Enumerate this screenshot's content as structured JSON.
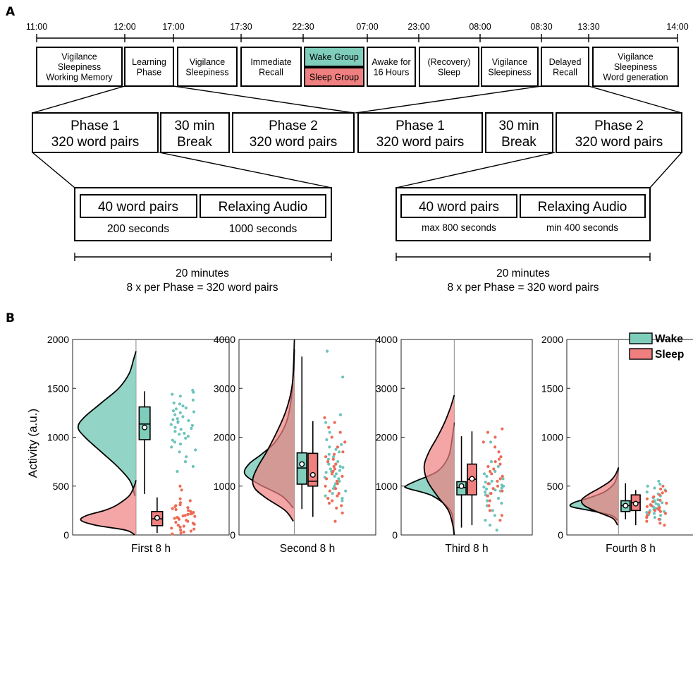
{
  "panel_a": {
    "letter": "A",
    "timeline_ticks": [
      "11:00",
      "12:00",
      "17:00",
      "17:30",
      "22:30",
      "07:00",
      "23:00",
      "08:00",
      "08:30",
      "13:30",
      "14:00"
    ],
    "stages": [
      {
        "lines": [
          "Vigilance",
          "Sleepiness",
          "Working Memory"
        ]
      },
      {
        "lines": [
          "Learning",
          "Phase"
        ]
      },
      {
        "lines": [
          "Vigilance",
          "Sleepiness"
        ]
      },
      {
        "lines": [
          "Immediate",
          "Recall"
        ]
      },
      {
        "lines": [
          "Wake Group"
        ],
        "color": "#7fcdbb"
      },
      {
        "lines": [
          "Sleep Group"
        ],
        "color": "#f08080"
      },
      {
        "lines": [
          "Awake for",
          "16 Hours"
        ]
      },
      {
        "lines": [
          "(Recovery)",
          "Sleep"
        ]
      },
      {
        "lines": [
          "Vigilance",
          "Sleepiness"
        ]
      },
      {
        "lines": [
          "Delayed",
          "Recall"
        ]
      },
      {
        "lines": [
          "Vigilance",
          "Sleepiness",
          "Word generation"
        ]
      }
    ],
    "learning": {
      "phase1": [
        "Phase 1",
        "320 word pairs"
      ],
      "break": [
        "30 min",
        "Break"
      ],
      "phase2": [
        "Phase 2",
        "320 word pairs"
      ],
      "block_pairs": "40 word pairs",
      "block_audio": "Relaxing Audio",
      "pairs_time": "200 seconds",
      "audio_time": "1000 seconds",
      "duration": "20 minutes",
      "per_phase": "8 x per Phase = 320 word pairs"
    },
    "recall": {
      "phase1": [
        "Phase 1",
        "320 word pairs"
      ],
      "break": [
        "30 min",
        "Break"
      ],
      "phase2": [
        "Phase 2",
        "320 word pairs"
      ],
      "block_pairs": "40 word pairs",
      "block_audio": "Relaxing Audio",
      "pairs_time": "max 800 seconds",
      "audio_time": "min 400 seconds",
      "duration": "20 minutes",
      "per_phase": "8 x per Phase = 320 word pairs"
    }
  },
  "chart_data": {
    "type": "raincloud",
    "letter": "B",
    "ylabel": "Activity (a.u.)",
    "legend": {
      "placement": "top-right",
      "entries": [
        {
          "name": "Wake",
          "color": "#7fcdbb"
        },
        {
          "name": "Sleep",
          "color": "#f08080"
        }
      ]
    },
    "colors": {
      "wake": "#7fcdbb",
      "sleep": "#f08080",
      "wake_dots": "#6cc4ba",
      "sleep_dots": "#ee6a55"
    },
    "subplots": [
      {
        "xlabel": "First 8 h",
        "ylim": [
          0,
          2000
        ],
        "yticks": [
          0,
          500,
          1000,
          1500,
          2000
        ],
        "wake": {
          "density": [
            [
              400,
              0.02
            ],
            [
              550,
              0.1
            ],
            [
              700,
              0.32
            ],
            [
              850,
              0.6
            ],
            [
              1000,
              0.88
            ],
            [
              1100,
              1.0
            ],
            [
              1200,
              0.9
            ],
            [
              1350,
              0.6
            ],
            [
              1500,
              0.3
            ],
            [
              1650,
              0.12
            ],
            [
              1800,
              0.04
            ],
            [
              1880,
              0.0
            ]
          ],
          "box": {
            "whisker_low": 420,
            "q1": 975,
            "median": 1135,
            "q3": 1310,
            "whisker_high": 1470,
            "mean": 1100
          }
        },
        "sleep": {
          "density": [
            [
              0,
              0.02
            ],
            [
              50,
              0.18
            ],
            [
              100,
              0.7
            ],
            [
              150,
              0.95
            ],
            [
              200,
              0.85
            ],
            [
              250,
              0.55
            ],
            [
              300,
              0.35
            ],
            [
              400,
              0.12
            ],
            [
              500,
              0.03
            ],
            [
              560,
              0.0
            ]
          ],
          "box": {
            "whisker_low": 20,
            "q1": 95,
            "median": 165,
            "q3": 240,
            "whisker_high": 385,
            "mean": 175
          }
        },
        "wake_points": [
          1480,
          1460,
          1440,
          1420,
          1380,
          1350,
          1340,
          1320,
          1300,
          1290,
          1270,
          1260,
          1250,
          1230,
          1210,
          1190,
          1180,
          1170,
          1160,
          1150,
          1130,
          1120,
          1100,
          1090,
          1080,
          1060,
          1040,
          1030,
          1010,
          990,
          970,
          950,
          930,
          900,
          870,
          850,
          800,
          750,
          700,
          650
        ],
        "sleep_points": [
          500,
          460,
          370,
          350,
          330,
          310,
          300,
          290,
          280,
          270,
          260,
          250,
          240,
          230,
          220,
          215,
          210,
          200,
          195,
          190,
          180,
          175,
          170,
          160,
          150,
          140,
          130,
          120,
          110,
          100,
          90,
          80,
          70,
          60,
          50,
          40,
          30,
          20,
          10
        ]
      },
      {
        "xlabel": "Second 8 h",
        "ylim": [
          0,
          4000
        ],
        "yticks": [
          0,
          1000,
          2000,
          3000,
          4000
        ],
        "wake": {
          "density": [
            [
              550,
              0.02
            ],
            [
              800,
              0.25
            ],
            [
              1050,
              0.72
            ],
            [
              1250,
              0.98
            ],
            [
              1450,
              0.9
            ],
            [
              1650,
              0.65
            ],
            [
              1900,
              0.38
            ],
            [
              2300,
              0.16
            ],
            [
              2800,
              0.06
            ],
            [
              3400,
              0.02
            ],
            [
              4000,
              0.0
            ]
          ],
          "box": {
            "whisker_low": 530,
            "q1": 1040,
            "median": 1370,
            "q3": 1680,
            "whisker_high": 3650,
            "mean": 1450
          }
        },
        "sleep": {
          "density": [
            [
              280,
              0.02
            ],
            [
              500,
              0.18
            ],
            [
              750,
              0.55
            ],
            [
              950,
              0.78
            ],
            [
              1150,
              0.82
            ],
            [
              1400,
              0.72
            ],
            [
              1700,
              0.55
            ],
            [
              2100,
              0.35
            ],
            [
              2500,
              0.18
            ],
            [
              2900,
              0.07
            ],
            [
              3300,
              0.02
            ],
            [
              3800,
              0.0
            ]
          ],
          "box": {
            "whisker_low": 370,
            "q1": 1000,
            "median": 1100,
            "q3": 1670,
            "whisker_high": 2330,
            "mean": 1230
          }
        },
        "wake_points": [
          3760,
          3230,
          2460,
          2300,
          2100,
          1950,
          1850,
          1800,
          1750,
          1700,
          1650,
          1600,
          1550,
          1500,
          1450,
          1400,
          1380,
          1350,
          1320,
          1300,
          1280,
          1250,
          1200,
          1180,
          1150,
          1100,
          1050,
          1000,
          950,
          900,
          850,
          800,
          750,
          700
        ],
        "sleep_points": [
          2400,
          2300,
          2200,
          2100,
          2000,
          1900,
          1800,
          1700,
          1650,
          1600,
          1550,
          1500,
          1450,
          1400,
          1350,
          1300,
          1250,
          1200,
          1150,
          1100,
          1050,
          1000,
          950,
          900,
          850,
          800,
          750,
          700,
          650,
          600,
          550,
          450,
          280
        ]
      },
      {
        "xlabel": "Third 8 h",
        "ylim": [
          0,
          4000
        ],
        "yticks": [
          0,
          1000,
          2000,
          3000,
          4000
        ],
        "wake": {
          "density": [
            [
              0,
              0.0
            ],
            [
              150,
              0.02
            ],
            [
              500,
              0.08
            ],
            [
              800,
              0.45
            ],
            [
              950,
              0.95
            ],
            [
              1000,
              1.0
            ],
            [
              1100,
              0.8
            ],
            [
              1300,
              0.35
            ],
            [
              1600,
              0.12
            ],
            [
              2000,
              0.04
            ],
            [
              2300,
              0.0
            ]
          ],
          "box": {
            "whisker_low": 150,
            "q1": 820,
            "median": 970,
            "q3": 1090,
            "whisker_high": 2020,
            "mean": 1000
          }
        },
        "sleep": {
          "density": [
            [
              0,
              0.0
            ],
            [
              200,
              0.03
            ],
            [
              500,
              0.12
            ],
            [
              800,
              0.35
            ],
            [
              1100,
              0.55
            ],
            [
              1400,
              0.62
            ],
            [
              1700,
              0.52
            ],
            [
              2000,
              0.35
            ],
            [
              2300,
              0.2
            ],
            [
              2600,
              0.08
            ],
            [
              2860,
              0.0
            ]
          ],
          "box": {
            "whisker_low": 200,
            "q1": 820,
            "median": 1140,
            "q3": 1450,
            "whisker_high": 2120,
            "mean": 1150
          }
        },
        "wake_points": [
          1900,
          1700,
          1500,
          1400,
          1300,
          1250,
          1200,
          1150,
          1100,
          1080,
          1050,
          1020,
          1000,
          980,
          960,
          940,
          920,
          900,
          880,
          850,
          820,
          800,
          750,
          700,
          650,
          600,
          500,
          400,
          300,
          200,
          100
        ],
        "sleep_points": [
          2170,
          2100,
          2000,
          1900,
          1800,
          1700,
          1600,
          1550,
          1500,
          1450,
          1400,
          1350,
          1300,
          1250,
          1200,
          1150,
          1100,
          1050,
          1000,
          950,
          900,
          850,
          800,
          700,
          600,
          500,
          400,
          300
        ]
      },
      {
        "xlabel": "Fourth 8 h",
        "ylim": [
          0,
          2000
        ],
        "yticks": [
          0,
          500,
          1000,
          1500,
          2000
        ],
        "wake": {
          "density": [
            [
              150,
              0.02
            ],
            [
              200,
              0.15
            ],
            [
              250,
              0.6
            ],
            [
              290,
              1.0
            ],
            [
              330,
              0.95
            ],
            [
              380,
              0.62
            ],
            [
              440,
              0.3
            ],
            [
              520,
              0.1
            ],
            [
              600,
              0.03
            ],
            [
              690,
              0.0
            ]
          ],
          "box": {
            "whisker_low": 160,
            "q1": 240,
            "median": 300,
            "q3": 350,
            "whisker_high": 530,
            "mean": 300
          }
        },
        "sleep": {
          "density": [
            [
              100,
              0.02
            ],
            [
              170,
              0.12
            ],
            [
              230,
              0.42
            ],
            [
              300,
              0.72
            ],
            [
              360,
              0.78
            ],
            [
              420,
              0.62
            ],
            [
              480,
              0.4
            ],
            [
              550,
              0.18
            ],
            [
              620,
              0.06
            ],
            [
              690,
              0.0
            ]
          ],
          "box": {
            "whisker_low": 100,
            "q1": 250,
            "median": 330,
            "q3": 410,
            "whisker_high": 460,
            "mean": 320
          }
        },
        "wake_points": [
          550,
          520,
          500,
          480,
          460,
          440,
          420,
          400,
          380,
          360,
          350,
          340,
          330,
          320,
          310,
          300,
          290,
          280,
          270,
          260,
          250,
          240,
          230,
          220,
          210,
          200,
          180,
          160
        ],
        "sleep_points": [
          500,
          470,
          450,
          430,
          410,
          390,
          370,
          355,
          340,
          325,
          310,
          300,
          290,
          280,
          270,
          260,
          250,
          240,
          230,
          220,
          200,
          180,
          160,
          140,
          120,
          100
        ]
      }
    ]
  }
}
